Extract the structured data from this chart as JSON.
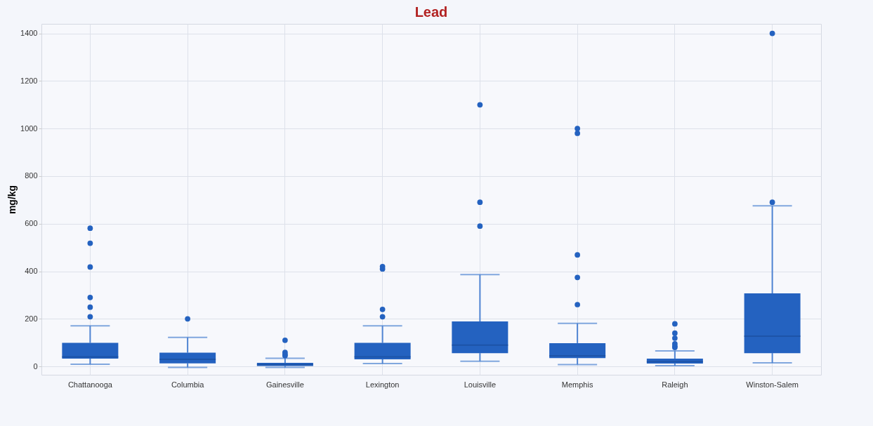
{
  "chart_data": {
    "type": "box",
    "title": "Lead",
    "ylabel": "mg/kg",
    "color": "#2462c0",
    "grid": true,
    "categories": [
      "Chattanooga",
      "Columbia",
      "Gainesville",
      "Lexington",
      "Louisville",
      "Memphis",
      "Raleigh",
      "Winston-Salem"
    ],
    "boxes": [
      {
        "low": 9,
        "q1": 33,
        "median": 40,
        "q3": 99,
        "high": 171,
        "outliers": [
          209,
          249,
          290,
          418,
          518,
          581
        ]
      },
      {
        "low": -4,
        "q1": 13,
        "median": 30,
        "q3": 58,
        "high": 122,
        "outliers": [
          200
        ]
      },
      {
        "low": -4,
        "q1": 2,
        "median": 8,
        "q3": 15,
        "high": 34,
        "outliers": [
          45,
          50,
          59,
          110
        ]
      },
      {
        "low": 12,
        "q1": 30,
        "median": 40,
        "q3": 99,
        "high": 171,
        "outliers": [
          209,
          240,
          410,
          420
        ]
      },
      {
        "low": 22,
        "q1": 56,
        "median": 90,
        "q3": 189,
        "high": 386,
        "outliers": [
          590,
          690,
          1100
        ]
      },
      {
        "low": 8,
        "q1": 35,
        "median": 45,
        "q3": 98,
        "high": 181,
        "outliers": [
          260,
          374,
          469,
          980,
          1000
        ]
      },
      {
        "low": 3,
        "q1": 12,
        "median": 20,
        "q3": 33,
        "high": 65,
        "outliers": [
          80,
          85,
          95,
          119,
          140,
          179
        ]
      },
      {
        "low": 15,
        "q1": 56,
        "median": 127,
        "q3": 307,
        "high": 675,
        "outliers": [
          690,
          1400
        ]
      }
    ],
    "ylim": [
      -35,
      1440
    ],
    "yticks": [
      0,
      200,
      400,
      600,
      800,
      1000,
      1200,
      1400
    ]
  }
}
